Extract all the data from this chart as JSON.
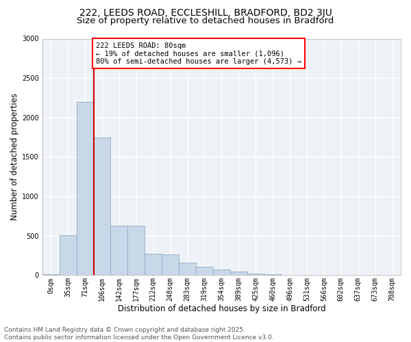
{
  "title_line1": "222, LEEDS ROAD, ECCLESHILL, BRADFORD, BD2 3JU",
  "title_line2": "Size of property relative to detached houses in Bradford",
  "xlabel": "Distribution of detached houses by size in Bradford",
  "ylabel": "Number of detached properties",
  "bar_color": "#c8d8e8",
  "bar_edge_color": "#90aac0",
  "background_color": "#eef2f7",
  "grid_color": "#ffffff",
  "annotation_line_color": "#cc0000",
  "categories": [
    "0sqm",
    "35sqm",
    "71sqm",
    "106sqm",
    "142sqm",
    "177sqm",
    "212sqm",
    "248sqm",
    "283sqm",
    "319sqm",
    "354sqm",
    "389sqm",
    "425sqm",
    "460sqm",
    "496sqm",
    "531sqm",
    "566sqm",
    "602sqm",
    "637sqm",
    "673sqm",
    "708sqm"
  ],
  "values": [
    8,
    510,
    2200,
    1750,
    630,
    630,
    270,
    265,
    155,
    105,
    70,
    50,
    22,
    12,
    5,
    4,
    2,
    1,
    1,
    0,
    1
  ],
  "property_label": "222 LEEDS ROAD: 80sqm",
  "annotation_line1": "← 19% of detached houses are smaller (1,096)",
  "annotation_line2": "80% of semi-detached houses are larger (4,573) →",
  "ylim_max": 3000,
  "yticks": [
    0,
    500,
    1000,
    1500,
    2000,
    2500,
    3000
  ],
  "footer_line1": "Contains HM Land Registry data © Crown copyright and database right 2025.",
  "footer_line2": "Contains public sector information licensed under the Open Government Licence v3.0.",
  "title_fontsize": 10,
  "subtitle_fontsize": 9.5,
  "axis_label_fontsize": 8.5,
  "tick_fontsize": 7,
  "annotation_fontsize": 7.5,
  "footer_fontsize": 6.5
}
